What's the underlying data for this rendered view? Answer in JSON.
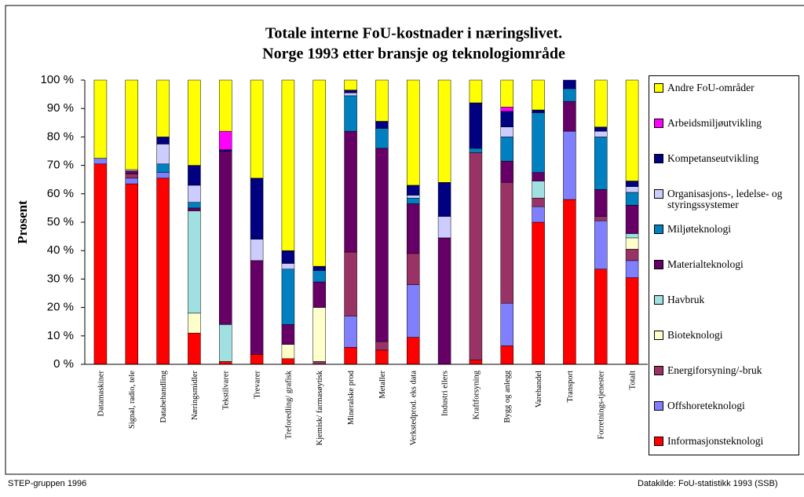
{
  "chart_data": {
    "type": "stacked_bar",
    "title": "Totale interne FoU-kostnader i næringslivet.",
    "subtitle": "Norge 1993 etter bransje og teknologiområde",
    "y_label": "Prosent",
    "source_left": "STEP-gruppen 1996",
    "source_right": "Datakilde: FoU-statistikk 1993 (SSB)",
    "categories": [
      "Datamaskiner",
      "Signal, radio, tele",
      "Databehandling",
      "Næringsmidler",
      "Tekstilvarer",
      "Trevarer",
      "Treforedling/ grafisk",
      "Kjemisk/ farmasøytisk",
      "Mineralske prod",
      "Metaller",
      "Verkstedprod. eks data",
      "Industri ellers",
      "Kraftforsyning",
      "Bygg og anlegg",
      "Varehandel",
      "Transport",
      "Forretnings-tjenester",
      "Totalt"
    ],
    "ylim": [
      0,
      100
    ],
    "yticks": [
      {
        "value": 0,
        "label": "0 %"
      },
      {
        "value": 10,
        "label": "10 %"
      },
      {
        "value": 20,
        "label": "20 %"
      },
      {
        "value": 30,
        "label": "30 %"
      },
      {
        "value": 40,
        "label": "40 %"
      },
      {
        "value": 50,
        "label": "50 %"
      },
      {
        "value": 60,
        "label": "60 %"
      },
      {
        "value": 70,
        "label": "70 %"
      },
      {
        "value": 80,
        "label": "80 %"
      },
      {
        "value": 90,
        "label": "90 %"
      },
      {
        "value": 100,
        "label": "100 %"
      }
    ],
    "grid": false,
    "legend": "right",
    "series": [
      {
        "name": "Informasjonsteknologi",
        "color": "#ff0000",
        "values": [
          70.5,
          63.5,
          65.5,
          11,
          1,
          3.5,
          2,
          0,
          6,
          5,
          9.5,
          0,
          1.5,
          6.5,
          50,
          58,
          33.5,
          30.5
        ]
      },
      {
        "name": "Offshoreteknologi",
        "color": "#8080ff",
        "values": [
          2,
          2,
          2,
          0,
          0,
          0,
          0,
          0,
          11,
          0,
          18.5,
          0,
          0,
          15,
          5.5,
          24,
          17,
          6
        ]
      },
      {
        "name": "Energiforsyning/-bruk",
        "color": "#993366",
        "values": [
          0,
          1.5,
          0,
          0,
          0,
          0,
          0,
          1,
          22.5,
          3,
          11,
          0,
          73,
          42.5,
          3,
          0,
          1.5,
          4
        ]
      },
      {
        "name": "Bioteknologi",
        "color": "#ffffcc",
        "values": [
          0,
          0,
          0,
          7,
          0,
          0,
          5,
          19,
          0,
          0,
          0,
          0,
          0,
          0,
          0,
          0,
          0,
          4
        ]
      },
      {
        "name": "Havbruk",
        "color": "#a0e0e0",
        "values": [
          0,
          0,
          0,
          36,
          13,
          0,
          0,
          0,
          0,
          0,
          0,
          0,
          0,
          0,
          6,
          0,
          0,
          1.5
        ]
      },
      {
        "name": "Materialteknologi",
        "color": "#660066",
        "values": [
          0,
          1,
          0,
          1,
          61,
          33,
          7,
          9,
          42.5,
          68,
          17.5,
          44.5,
          0,
          7.5,
          3,
          10.5,
          9.5,
          10
        ]
      },
      {
        "name": "Miljøteknologi",
        "color": "#0080c0",
        "values": [
          0,
          0,
          3,
          2,
          0,
          0,
          19.5,
          4,
          12.5,
          7,
          2,
          0,
          1.5,
          8.5,
          21,
          4.5,
          18.5,
          4.5
        ]
      },
      {
        "name": "Organisasjons-, ledelse- og styringssystemer",
        "color": "#ccccff",
        "values": [
          0,
          0.5,
          7,
          6,
          0,
          7.5,
          2,
          0,
          1,
          0,
          1,
          7.5,
          0,
          3.5,
          0,
          0,
          2,
          2
        ]
      },
      {
        "name": "Kompetanseutvikling",
        "color": "#000080",
        "values": [
          0,
          0,
          2.5,
          7,
          0.5,
          21.5,
          4.5,
          1.5,
          1,
          2.5,
          3.5,
          12,
          16,
          5.5,
          1,
          3,
          1.5,
          2
        ]
      },
      {
        "name": "Arbeidsmiljøutvikling",
        "color": "#ff00ff",
        "values": [
          0,
          0,
          0,
          0,
          6.5,
          0,
          0,
          0,
          0,
          0,
          0,
          0,
          0,
          1.5,
          0,
          0,
          0,
          0
        ]
      },
      {
        "name": "Andre FoU-områder",
        "color": "#ffff00",
        "values": [
          27.5,
          31.5,
          20,
          30,
          18,
          34.5,
          60,
          65.5,
          3.5,
          14.5,
          37,
          36,
          8,
          9.5,
          10.5,
          0,
          16.5,
          35.5
        ]
      }
    ]
  }
}
